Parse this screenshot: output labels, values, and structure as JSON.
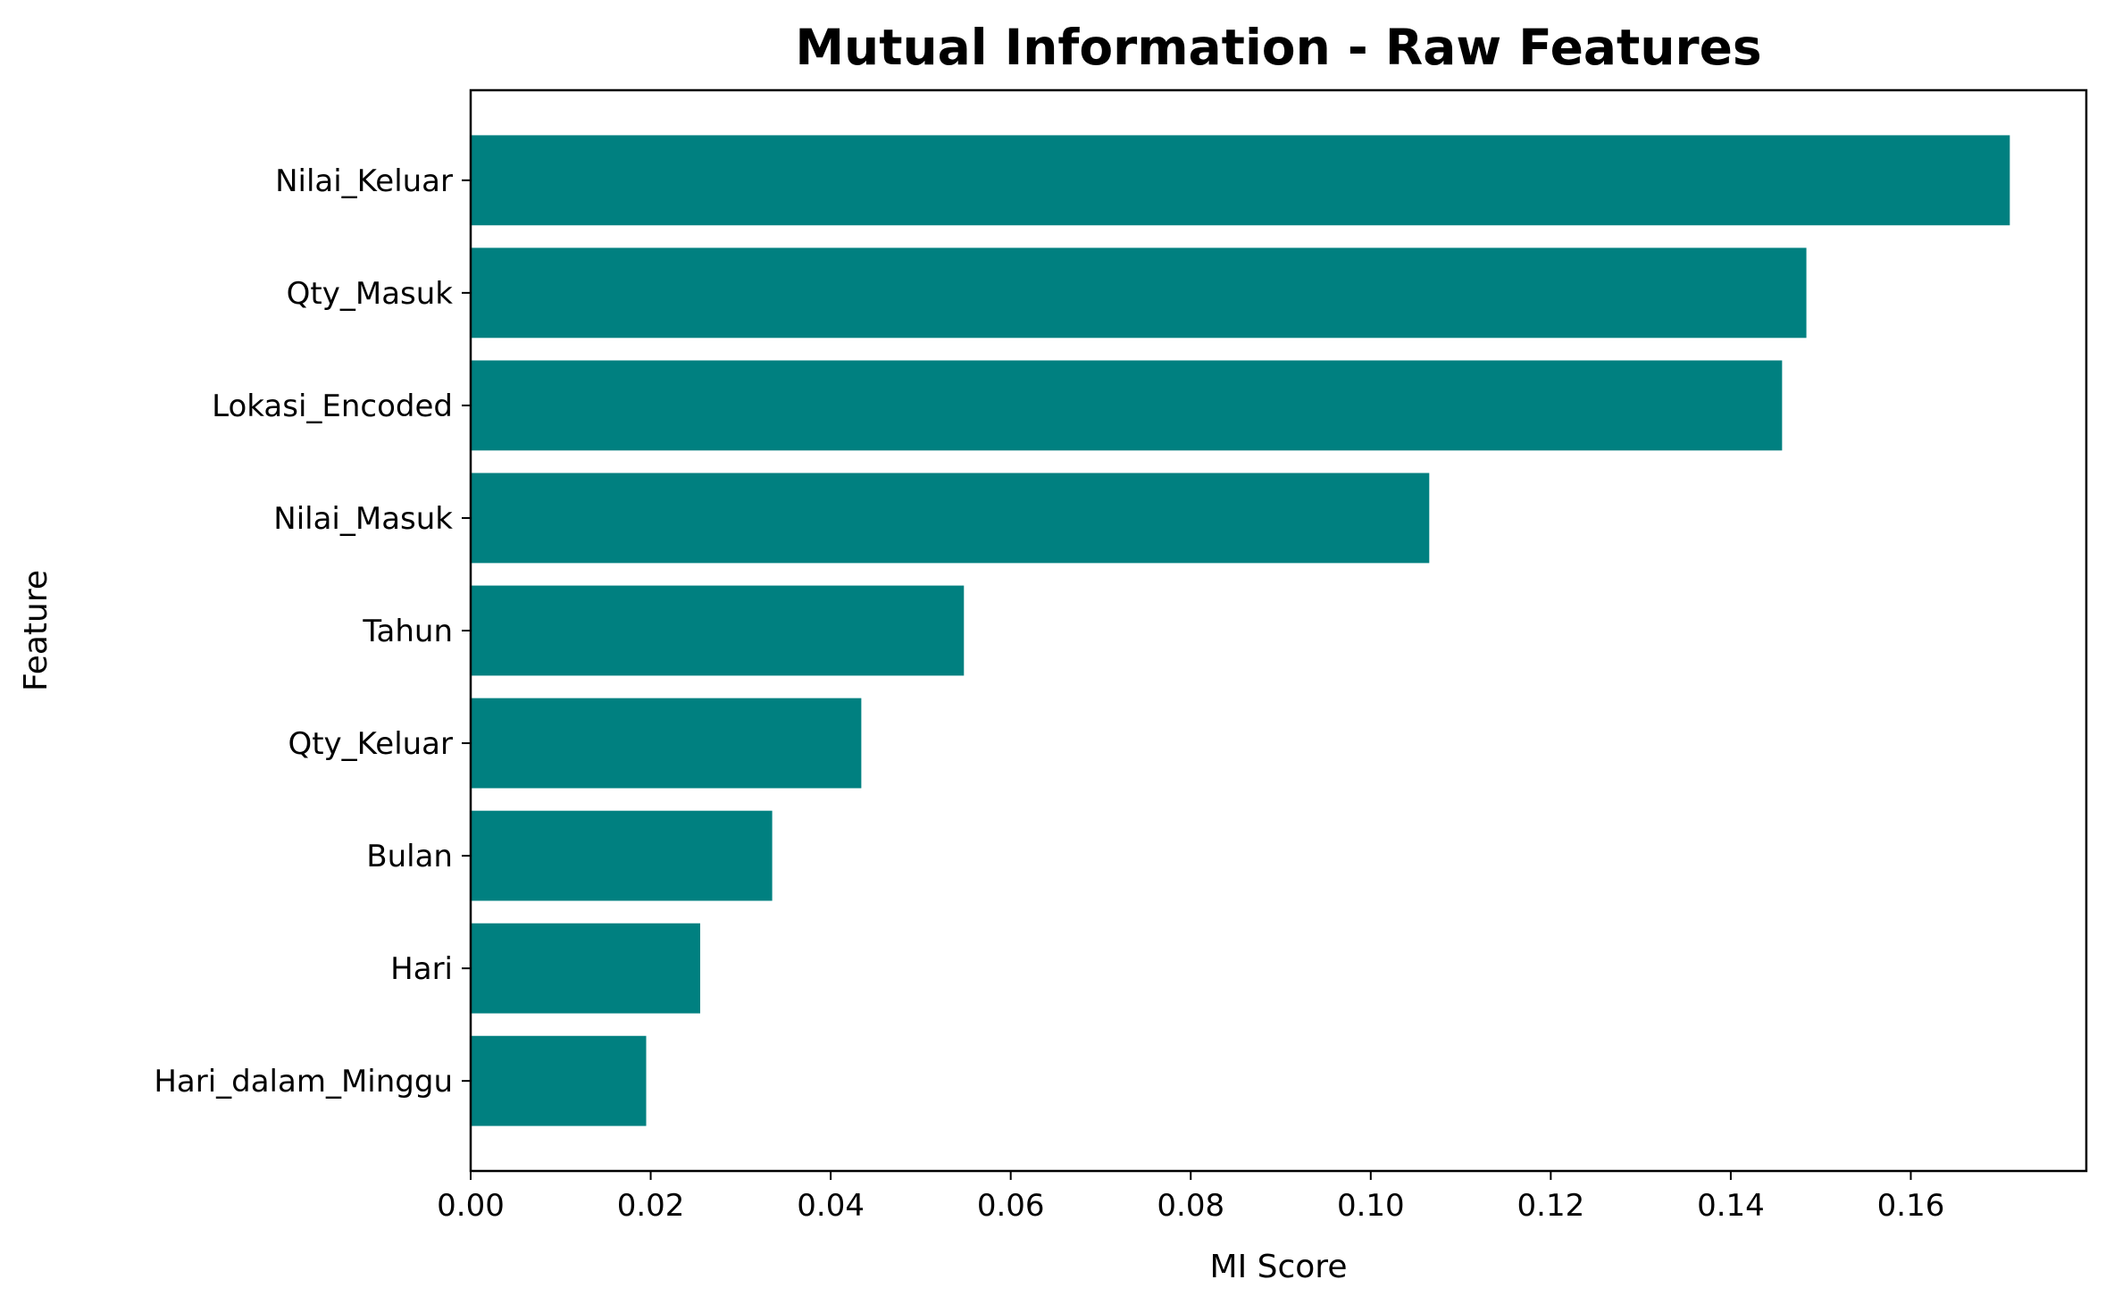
{
  "chart_data": {
    "type": "bar",
    "orientation": "horizontal",
    "title": "Mutual Information - Raw Features",
    "xlabel": "MI Score",
    "ylabel": "Feature",
    "categories": [
      "Nilai_Keluar",
      "Qty_Masuk",
      "Lokasi_Encoded",
      "Nilai_Masuk",
      "Tahun",
      "Qty_Keluar",
      "Bulan",
      "Hari",
      "Hari_dalam_Minggu"
    ],
    "values": [
      0.171,
      0.1484,
      0.1457,
      0.1065,
      0.0548,
      0.0434,
      0.0335,
      0.0255,
      0.0195
    ],
    "xlim": [
      0,
      0.1795
    ],
    "xticks": [
      0.0,
      0.02,
      0.04,
      0.06,
      0.08,
      0.1,
      0.12,
      0.14,
      0.16
    ],
    "xtick_labels": [
      "0.00",
      "0.02",
      "0.04",
      "0.06",
      "0.08",
      "0.10",
      "0.12",
      "0.14",
      "0.16"
    ],
    "grid": false,
    "bar_color": "#008080"
  }
}
